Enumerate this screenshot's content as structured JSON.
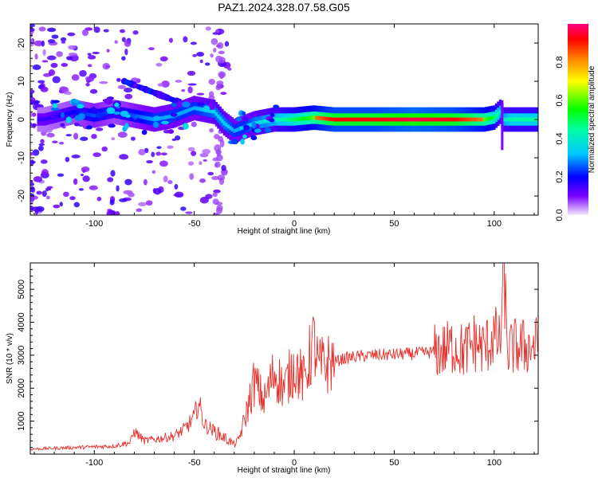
{
  "title": "PAZ1.2024.328.07.58.G05",
  "chart_data": [
    {
      "type": "heatmap",
      "xlabel": "Height of straight line (km)",
      "ylabel": "Frequency (Hz)",
      "xlim": [
        -132,
        122
      ],
      "ylim": [
        -25,
        25
      ],
      "xticks": [
        -100,
        -50,
        0,
        50,
        100
      ],
      "yticks": [
        -20,
        -10,
        0,
        10,
        20
      ],
      "grid": false,
      "ridge": {
        "x": [
          -125,
          -110,
          -100,
          -90,
          -80,
          -70,
          -60,
          -50,
          -40,
          -35,
          -30,
          -25,
          -20,
          -10,
          0,
          10,
          20,
          40,
          60,
          80,
          95,
          100,
          103,
          105,
          110,
          122
        ],
        "freq": [
          0,
          2,
          1,
          2,
          1,
          0,
          1,
          3,
          2,
          -1,
          -3,
          -2,
          -1,
          0,
          0,
          0.5,
          0,
          0,
          0,
          0,
          0,
          0.5,
          2,
          0,
          0,
          0
        ],
        "amplitude": [
          0.15,
          0.2,
          0.25,
          0.2,
          0.25,
          0.3,
          0.3,
          0.3,
          0.35,
          0.35,
          0.3,
          0.3,
          0.35,
          0.4,
          0.5,
          0.6,
          0.7,
          0.7,
          0.75,
          0.7,
          0.6,
          0.5,
          0.4,
          0.4,
          0.45,
          0.45
        ]
      },
      "colorbar": {
        "label": "Normalized spectral amplitude",
        "ticks": [
          "0.0",
          "0.2",
          "0.4",
          "0.6",
          "0.8"
        ],
        "range": [
          0,
          1
        ]
      }
    },
    {
      "type": "line",
      "xlabel": "Height of straight line (km)",
      "ylabel": "SNR (10 * v/v)",
      "xlim": [
        -132,
        122
      ],
      "ylim": [
        0,
        5800
      ],
      "xticks": [
        -100,
        -50,
        0,
        50,
        100
      ],
      "yticks": [
        1000,
        2000,
        3000,
        4000,
        5000
      ],
      "grid": false,
      "series": [
        {
          "color": "#e8302c",
          "x": [
            -132,
            -120,
            -110,
            -100,
            -90,
            -82,
            -80,
            -75,
            -70,
            -60,
            -55,
            -50,
            -48,
            -45,
            -40,
            -35,
            -30,
            -28,
            -25,
            -22,
            -20,
            -15,
            -10,
            -5,
            0,
            3,
            5,
            8,
            10,
            12,
            15,
            20,
            25,
            30,
            40,
            50,
            60,
            70,
            75,
            80,
            85,
            90,
            95,
            100,
            103,
            105,
            106,
            107,
            110,
            115,
            122
          ],
          "y": [
            150,
            180,
            200,
            220,
            250,
            350,
            700,
            400,
            450,
            550,
            750,
            1100,
            1600,
            900,
            700,
            500,
            300,
            400,
            1000,
            1700,
            2200,
            1600,
            2500,
            2000,
            2700,
            2400,
            2200,
            3000,
            3400,
            2600,
            2700,
            2800,
            2900,
            2950,
            3000,
            3020,
            3050,
            3100,
            3150,
            3300,
            3100,
            3400,
            3200,
            3600,
            3300,
            5700,
            3800,
            3100,
            3250,
            3250,
            3300
          ]
        }
      ]
    }
  ]
}
